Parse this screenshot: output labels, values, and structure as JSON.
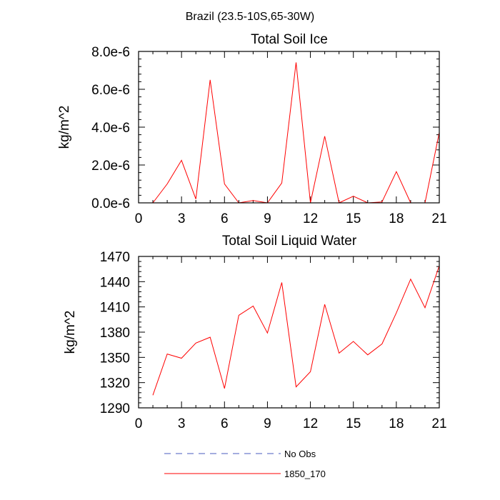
{
  "supertitle": "Brazil (23.5-10S,65-30W)",
  "colors": {
    "model_line": "#ff0000",
    "obs_line": "#4a5bbf",
    "axes": "#000000"
  },
  "chart_data": [
    {
      "type": "line",
      "title": "Total Soil Ice",
      "xlabel": "",
      "ylabel": "kg/m^2",
      "xlim": [
        0,
        21
      ],
      "ylim": [
        0,
        8e-06
      ],
      "xticks": [
        0,
        3,
        6,
        9,
        12,
        15,
        18,
        21
      ],
      "xtick_labels": [
        "0",
        "3",
        "6",
        "9",
        "12",
        "15",
        "18",
        "21"
      ],
      "yticks": [
        0,
        2e-06,
        4e-06,
        6e-06,
        8e-06
      ],
      "ytick_labels": [
        "0.0e-6",
        "2.0e-6",
        "4.0e-6",
        "6.0e-6",
        "8.0e-6"
      ],
      "x": [
        1,
        2,
        3,
        4,
        5,
        6,
        7,
        8,
        9,
        10,
        11,
        12,
        13,
        14,
        15,
        16,
        17,
        18,
        19,
        20,
        21
      ],
      "series": [
        {
          "name": "1850_170",
          "color": "#ff0000",
          "values": [
            0.0,
            1e-06,
            2.25e-06,
            2e-07,
            6.5e-06,
            1e-06,
            0.0,
            1.2e-07,
            0.0,
            1.05e-06,
            7.42e-06,
            0.0,
            3.52e-06,
            0.0,
            3.5e-07,
            0.0,
            5e-08,
            1.65e-06,
            0.0,
            0.0,
            3.72e-06
          ]
        }
      ]
    },
    {
      "type": "line",
      "title": "Total Soil Liquid Water",
      "xlabel": "",
      "ylabel": "kg/m^2",
      "xlim": [
        0,
        21
      ],
      "ylim": [
        1290,
        1470
      ],
      "xticks": [
        0,
        3,
        6,
        9,
        12,
        15,
        18,
        21
      ],
      "xtick_labels": [
        "0",
        "3",
        "6",
        "9",
        "12",
        "15",
        "18",
        "21"
      ],
      "yticks": [
        1290,
        1320,
        1350,
        1380,
        1410,
        1440,
        1470
      ],
      "ytick_labels": [
        "1290",
        "1320",
        "1350",
        "1380",
        "1410",
        "1440",
        "1470"
      ],
      "x": [
        1,
        2,
        3,
        4,
        5,
        6,
        7,
        8,
        9,
        10,
        11,
        12,
        13,
        14,
        15,
        16,
        17,
        18,
        19,
        20,
        21
      ],
      "series": [
        {
          "name": "1850_170",
          "color": "#ff0000",
          "values": [
            1305,
            1354,
            1349,
            1367,
            1374,
            1313,
            1400,
            1411,
            1379,
            1439,
            1315,
            1333,
            1413,
            1355,
            1369,
            1353,
            1366,
            1403,
            1443,
            1409,
            1459
          ]
        }
      ]
    }
  ],
  "legend": {
    "placement": "bottom",
    "entries": [
      {
        "label": "No Obs",
        "color": "#4a5bbf",
        "dash": "dashed"
      },
      {
        "label": "1850_170",
        "color": "#ff0000",
        "dash": "solid"
      }
    ]
  }
}
